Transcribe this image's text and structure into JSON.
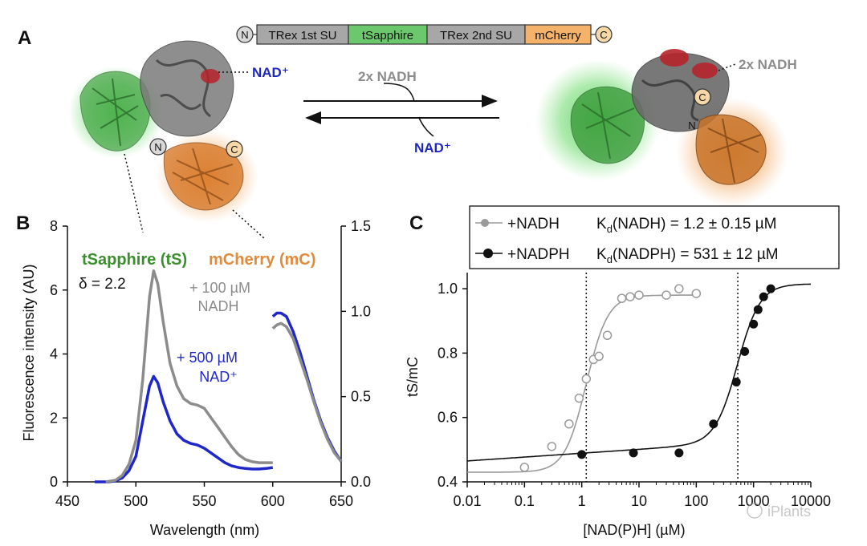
{
  "colors": {
    "green": "#3a8f2c",
    "orange": "#e08a3a",
    "blue": "#1f27c8",
    "gray": "#8c8c8c",
    "red": "#b5232a",
    "black": "#111111"
  },
  "panelA": {
    "label": "A",
    "construct": {
      "n_terminus": "N",
      "c_terminus": "C",
      "segments": [
        "TRex 1st SU",
        "tSapphire",
        "TRex 2nd SU",
        "mCherry"
      ]
    },
    "left_state": {
      "nad_label": "NAD⁺",
      "n_label": "N",
      "c_label": "C"
    },
    "right_state": {
      "nadh_label": "2x NADH",
      "n_label": "N",
      "c_label": "C"
    },
    "arrows": {
      "forward_label": "2x NADH",
      "reverse_label": "NAD⁺"
    }
  },
  "panelB": {
    "label": "B",
    "title_tS": "tSapphire (tS)",
    "title_mC": "mCherry (mC)",
    "delta_label": "δ = 2.2",
    "annotation_nadh": [
      "+ 100 µM",
      "NADH"
    ],
    "annotation_nad": [
      "+ 500 µM",
      "NAD⁺"
    ],
    "chart_data": {
      "type": "line",
      "xlabel": "Wavelength (nm)",
      "ylabel": "Fluorescence intensity (AU)",
      "xlim": [
        450,
        650
      ],
      "ylim_left": [
        0,
        8
      ],
      "ylim_right": [
        0,
        1.5
      ],
      "xticks": [
        "450",
        "500",
        "550",
        "600",
        "650"
      ],
      "yticks_left": [
        "0",
        "2",
        "4",
        "6",
        "8"
      ],
      "yticks_right": [
        "0.0",
        "0.5",
        "1.0",
        "1.5"
      ],
      "series": [
        {
          "name": "+ 100 µM NADH",
          "axis": "left",
          "color": "gray",
          "x": [
            478,
            485,
            490,
            495,
            500,
            505,
            510,
            513,
            516,
            520,
            525,
            530,
            535,
            540,
            545,
            550,
            555,
            560,
            565,
            570,
            575,
            580,
            585,
            590,
            595,
            600
          ],
          "y": [
            0,
            0.05,
            0.2,
            0.55,
            1.3,
            3.2,
            5.8,
            6.6,
            6.2,
            5.0,
            3.7,
            3.0,
            2.6,
            2.45,
            2.4,
            2.3,
            2.0,
            1.7,
            1.4,
            1.1,
            0.85,
            0.7,
            0.63,
            0.6,
            0.6,
            0.6
          ]
        },
        {
          "name": "+ 500 µM NAD⁺",
          "axis": "left",
          "color": "blue",
          "x": [
            470,
            480,
            485,
            490,
            495,
            500,
            505,
            510,
            513,
            516,
            520,
            525,
            530,
            535,
            540,
            545,
            550,
            555,
            560,
            565,
            570,
            575,
            580,
            585,
            590,
            595,
            600
          ],
          "y": [
            0,
            0,
            0.03,
            0.12,
            0.35,
            0.8,
            1.9,
            3.0,
            3.3,
            3.1,
            2.5,
            1.9,
            1.5,
            1.3,
            1.2,
            1.15,
            1.05,
            0.9,
            0.75,
            0.6,
            0.5,
            0.45,
            0.42,
            0.4,
            0.4,
            0.42,
            0.45
          ]
        },
        {
          "name": "mCherry + 100 µM NADH",
          "axis": "right",
          "color": "gray",
          "x": [
            600,
            603,
            606,
            610,
            615,
            620,
            625,
            630,
            635,
            640,
            645,
            650
          ],
          "y": [
            0.9,
            0.92,
            0.93,
            0.91,
            0.84,
            0.72,
            0.6,
            0.47,
            0.35,
            0.25,
            0.17,
            0.12
          ]
        },
        {
          "name": "mCherry + 500 µM NAD⁺",
          "axis": "right",
          "color": "blue",
          "x": [
            600,
            603,
            606,
            610,
            615,
            620,
            625,
            630,
            635,
            640,
            645,
            650
          ],
          "y": [
            0.97,
            0.99,
            0.99,
            0.97,
            0.88,
            0.76,
            0.62,
            0.48,
            0.36,
            0.26,
            0.18,
            0.12
          ]
        }
      ]
    }
  },
  "panelC": {
    "label": "C",
    "chart_data": {
      "type": "scatter",
      "xlabel": "[NAD(P)H] (µM)",
      "ylabel": "tS/mC",
      "xscale": "log",
      "xlim": [
        0.01,
        10000
      ],
      "ylim": [
        0.4,
        1.05
      ],
      "xticks": [
        "0.01",
        "0.1",
        "1",
        "10",
        "100",
        "1000",
        "10000"
      ],
      "yticks": [
        "0.4",
        "0.6",
        "0.8",
        "1.0"
      ],
      "legend": [
        {
          "label": "+NADH",
          "kd_label": "K",
          "kd_sub": "d",
          "kd_text": "(NADH) = 1.2 ± 0.15 µM"
        },
        {
          "label": "+NADPH",
          "kd_label": "K",
          "kd_sub": "d",
          "kd_text": "(NADPH) = 531 ± 12 µM"
        }
      ],
      "vlines": [
        1.2,
        531
      ],
      "series": [
        {
          "name": "+NADH",
          "marker": "open",
          "color": "gray",
          "x": [
            0.1,
            0.3,
            0.6,
            0.9,
            1.2,
            1.6,
            2.0,
            2.8,
            5,
            7,
            10,
            30,
            50,
            100
          ],
          "y": [
            0.445,
            0.51,
            0.58,
            0.66,
            0.72,
            0.78,
            0.79,
            0.855,
            0.97,
            0.975,
            0.98,
            0.98,
            1.0,
            0.985
          ],
          "fit": {
            "bottom": 0.43,
            "top": 0.98,
            "kd": 1.2,
            "n": 2.3,
            "xmin": 0.01,
            "xmax": 100
          }
        },
        {
          "name": "+NADPH",
          "marker": "filled",
          "color": "black",
          "x": [
            1,
            8,
            50,
            200,
            500,
            700,
            1000,
            1200,
            1500,
            2000
          ],
          "y": [
            0.485,
            0.49,
            0.49,
            0.58,
            0.71,
            0.805,
            0.89,
            0.935,
            0.975,
            1.0
          ],
          "fit": {
            "bottom": 0.465,
            "top": 1.015,
            "kd": 531,
            "n": 2.2,
            "slope": 0.012,
            "xmin": 0.01,
            "xmax": 10000
          }
        }
      ]
    }
  },
  "watermark": "iPlants"
}
